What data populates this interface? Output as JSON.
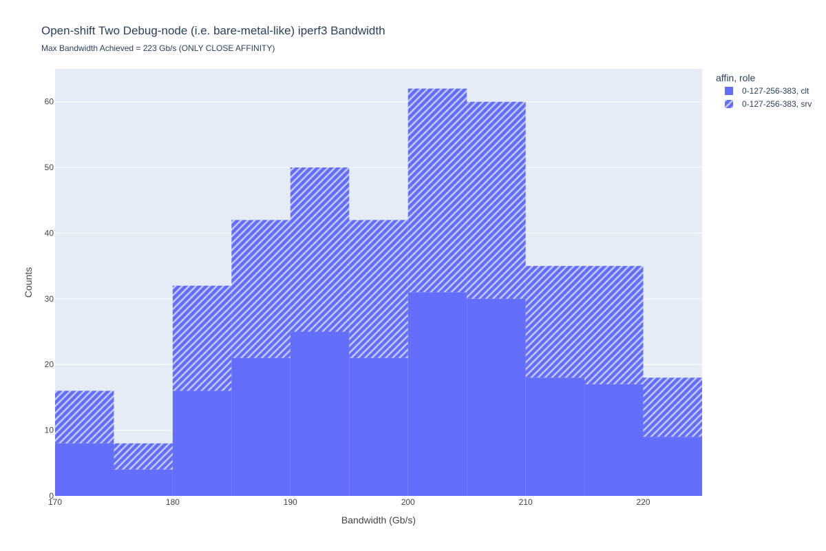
{
  "chart_data": {
    "type": "bar",
    "barmode": "stack",
    "title": "Open-shift Two Debug-node (i.e. bare-metal-like) iperf3 Bandwidth",
    "subtitle": "Max Bandwidth Achieved = 223 Gb/s (ONLY CLOSE AFFINITY)",
    "xlabel": "Bandwidth (Gb/s)",
    "ylabel": "Counts",
    "xlim": [
      170,
      225
    ],
    "ylim": [
      0,
      65
    ],
    "xticks": [
      170,
      180,
      190,
      200,
      210,
      220
    ],
    "yticks": [
      0,
      10,
      20,
      30,
      40,
      50,
      60
    ],
    "grid": true,
    "bins": [
      [
        170,
        175
      ],
      [
        175,
        180
      ],
      [
        180,
        185
      ],
      [
        185,
        190
      ],
      [
        190,
        195
      ],
      [
        195,
        200
      ],
      [
        200,
        205
      ],
      [
        205,
        210
      ],
      [
        210,
        215
      ],
      [
        215,
        220
      ],
      [
        220,
        225
      ]
    ],
    "legend": {
      "title": "affin, role",
      "position": "top-right"
    },
    "series": [
      {
        "name": "0-127-256-383, clt",
        "pattern": "solid",
        "color": "#636efa",
        "values": [
          8,
          4,
          16,
          21,
          25,
          21,
          31,
          30,
          18,
          17,
          9
        ]
      },
      {
        "name": "0-127-256-383, srv",
        "pattern": "hatch",
        "color": "#636efa",
        "values": [
          8,
          4,
          16,
          21,
          25,
          21,
          31,
          30,
          17,
          18,
          9
        ]
      }
    ],
    "colors": {
      "plot_bg": "#e5ecf6",
      "grid": "#ffffff",
      "bar": "#636efa",
      "hatch": "#c7cbf9"
    }
  }
}
